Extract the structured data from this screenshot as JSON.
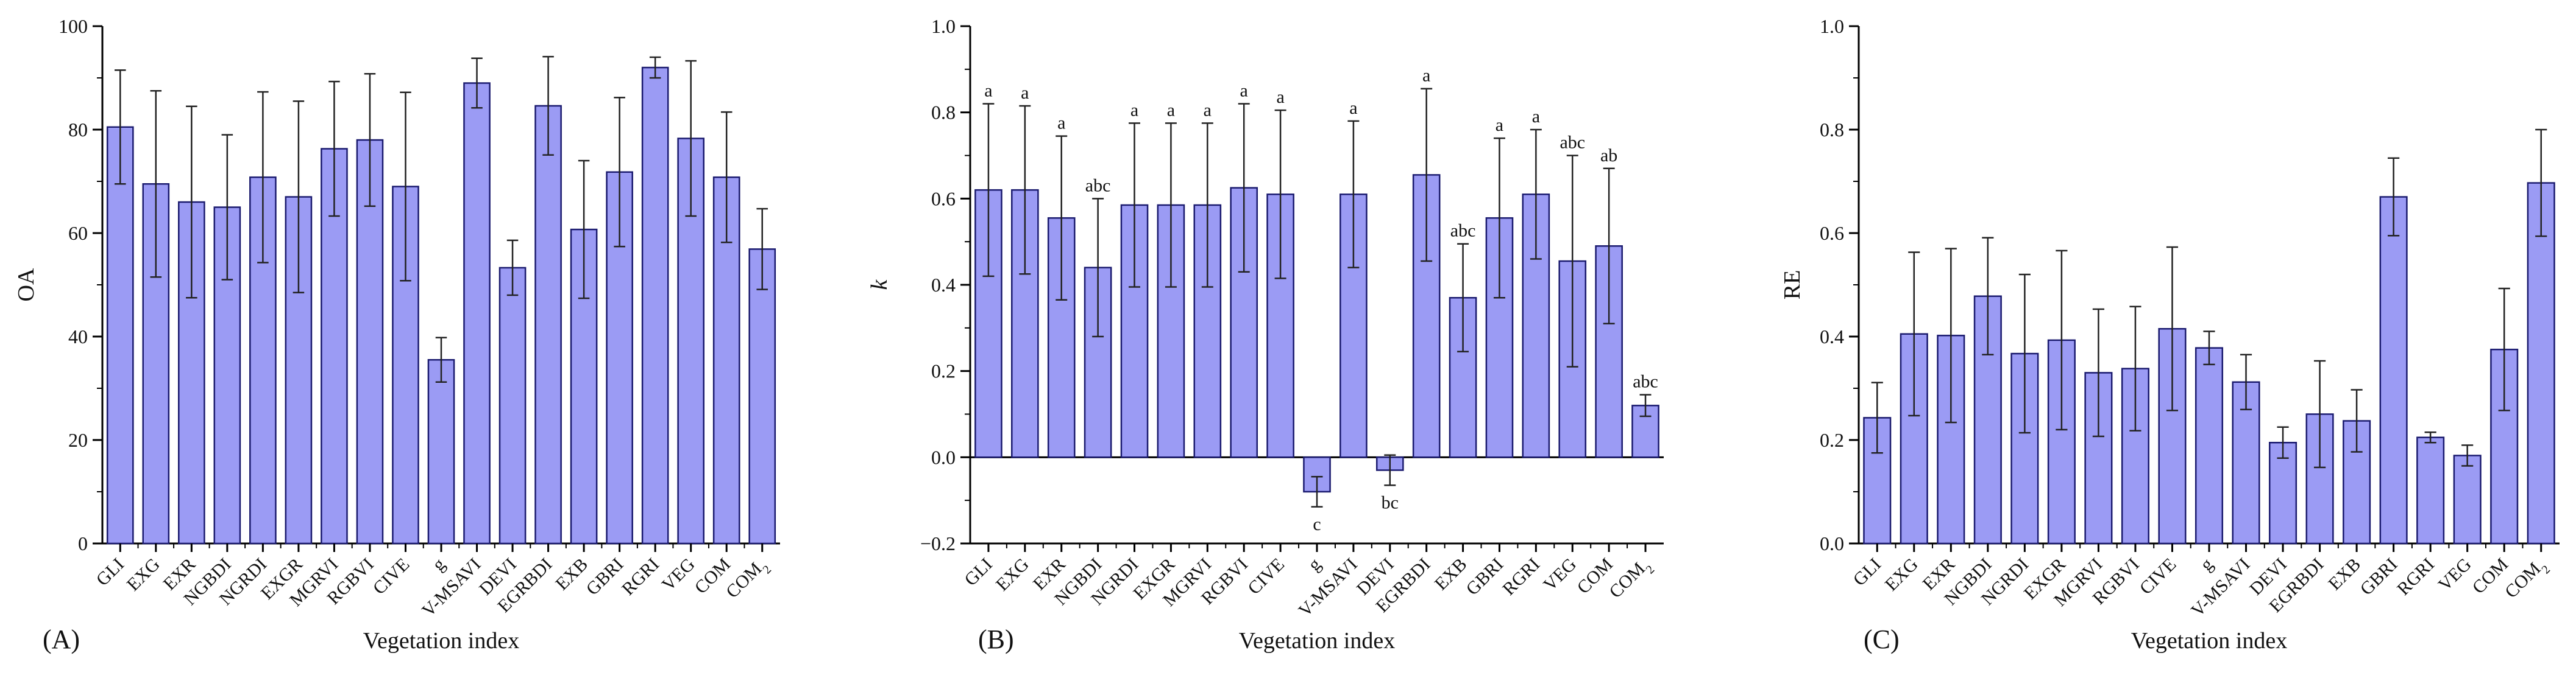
{
  "chart_data": [
    {
      "type": "bar",
      "panel_label": "(A)",
      "xlabel": "Vegetation index",
      "ylabel": "OA",
      "ylabel_italic": false,
      "ylim": [
        0,
        100
      ],
      "yticks": [
        "0",
        "20",
        "40",
        "60",
        "80",
        "100"
      ],
      "categories": [
        "GLI",
        "EXG",
        "EXR",
        "NGBDI",
        "NGRDI",
        "EXGR",
        "MGRVI",
        "RGBVI",
        "CIVE",
        "g",
        "V-MSAVI",
        "DEVI",
        "EGRBDI",
        "EXB",
        "GBRI",
        "RGRI",
        "VEG",
        "COM",
        "COM2"
      ],
      "values": [
        80.5,
        69.5,
        66.0,
        65.0,
        70.8,
        67.0,
        76.3,
        78.0,
        69.0,
        35.5,
        89.0,
        53.3,
        84.6,
        60.7,
        71.8,
        92.0,
        78.3,
        70.8,
        56.9
      ],
      "errors": [
        11.0,
        18.0,
        18.5,
        14.0,
        16.5,
        18.5,
        13.0,
        12.8,
        18.2,
        4.3,
        4.8,
        5.3,
        9.5,
        13.3,
        14.4,
        2.0,
        15.0,
        12.6,
        7.8
      ],
      "grid": false
    },
    {
      "type": "bar",
      "panel_label": "(B)",
      "xlabel": "Vegetation index",
      "ylabel": "k",
      "ylabel_italic": true,
      "ylim": [
        -0.2,
        1.0
      ],
      "yticks": [
        "−0.2",
        "0.0",
        "0.2",
        "0.4",
        "0.6",
        "0.8",
        "1.0"
      ],
      "categories": [
        "GLI",
        "EXG",
        "EXR",
        "NGBDI",
        "NGRDI",
        "EXGR",
        "MGRVI",
        "RGBVI",
        "CIVE",
        "g",
        "V-MSAVI",
        "DEVI",
        "EGRBDI",
        "EXB",
        "GBRI",
        "RGRI",
        "VEG",
        "COM",
        "COM2"
      ],
      "values": [
        0.62,
        0.62,
        0.555,
        0.44,
        0.585,
        0.585,
        0.585,
        0.625,
        0.61,
        -0.08,
        0.61,
        -0.03,
        0.655,
        0.37,
        0.555,
        0.61,
        0.455,
        0.49,
        0.12
      ],
      "errors": [
        0.2,
        0.195,
        0.19,
        0.16,
        0.19,
        0.19,
        0.19,
        0.195,
        0.195,
        0.035,
        0.17,
        0.035,
        0.2,
        0.125,
        0.185,
        0.15,
        0.245,
        0.18,
        0.025
      ],
      "significance": [
        "a",
        "a",
        "a",
        "abc",
        "a",
        "a",
        "a",
        "a",
        "a",
        "c",
        "a",
        "bc",
        "a",
        "abc",
        "a",
        "a",
        "abc",
        "ab",
        "abc"
      ],
      "grid": false
    },
    {
      "type": "bar",
      "panel_label": "(C)",
      "xlabel": "Vegetation index",
      "ylabel": "RE",
      "ylabel_italic": false,
      "ylim": [
        0,
        1.0
      ],
      "yticks": [
        "0.0",
        "0.2",
        "0.4",
        "0.6",
        "0.8",
        "1.0"
      ],
      "categories": [
        "GLI",
        "EXG",
        "EXR",
        "NGBDI",
        "NGRDI",
        "EXGR",
        "MGRVI",
        "RGBVI",
        "CIVE",
        "g",
        "V-MSAVI",
        "DEVI",
        "EGRBDI",
        "EXB",
        "GBRI",
        "RGRI",
        "VEG",
        "COM",
        "COM2"
      ],
      "values": [
        0.243,
        0.405,
        0.402,
        0.478,
        0.367,
        0.393,
        0.33,
        0.338,
        0.415,
        0.378,
        0.312,
        0.195,
        0.25,
        0.237,
        0.67,
        0.205,
        0.17,
        0.375,
        0.697
      ],
      "errors": [
        0.068,
        0.158,
        0.168,
        0.113,
        0.153,
        0.173,
        0.123,
        0.12,
        0.158,
        0.032,
        0.053,
        0.03,
        0.103,
        0.06,
        0.075,
        0.01,
        0.02,
        0.118,
        0.103
      ],
      "grid": false
    }
  ]
}
